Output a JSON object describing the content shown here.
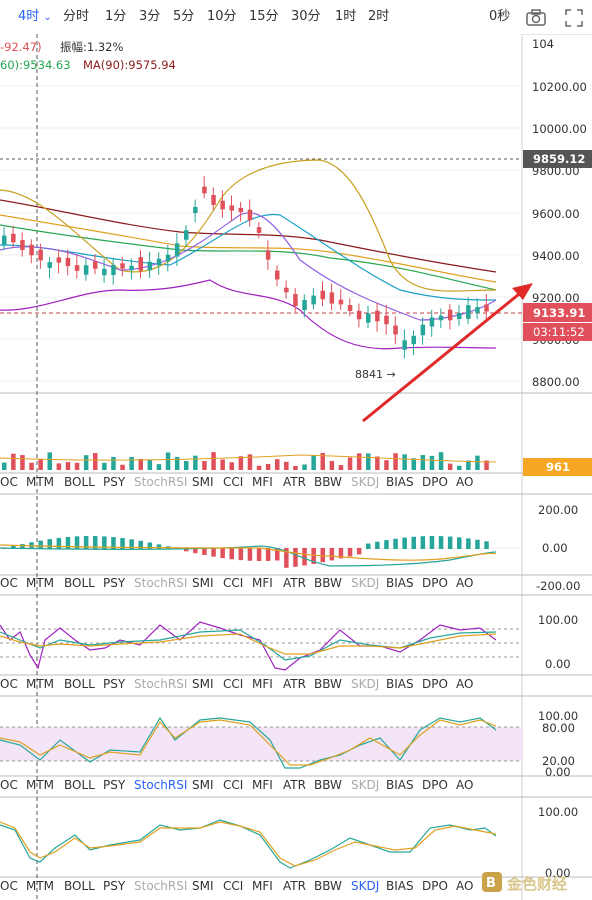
{
  "toolbar": {
    "timeframes": [
      "4时",
      "分时",
      "1分",
      "3分",
      "5分",
      "10分",
      "15分",
      "30分",
      "1时",
      "2时"
    ],
    "active_timeframe": "4时",
    "active_caret": "⌄",
    "countdown": "0秒",
    "icons": [
      "camera-icon",
      "fullscreen-icon"
    ]
  },
  "info": {
    "change": "-92.47)",
    "amplitude_label": "振幅:1.32%",
    "ma60": "60):9534.63",
    "ma90": "MA(90):9575.94"
  },
  "price_axis": {
    "ticks": [
      "104",
      "10200.00",
      "10000.00",
      "9800.00",
      "9600.00",
      "9400.00",
      "9200.00",
      "9000.00",
      "8800.00"
    ],
    "high_label": "9859.12",
    "last_price": "9133.91",
    "countdown_label": "03:11:52",
    "volume_label": "961",
    "low_annotation": "8841 →",
    "accent_red": "#e0505a",
    "accent_green": "#26a69a"
  },
  "indicator_tabs": {
    "items": [
      "OC",
      "MTM",
      "BOLL",
      "PSY",
      "StochRSI",
      "SMI",
      "CCI",
      "MFI",
      "ATR",
      "BBW",
      "SKDJ",
      "BIAS",
      "DPO",
      "AO"
    ],
    "greyed": [
      "StochRSI",
      "SKDJ"
    ],
    "highlighted_row4": "StochRSI",
    "highlighted_row5": "SKDJ"
  },
  "macd_axis": [
    "200.00",
    "0.00",
    "-200.00"
  ],
  "rsi_axis": [
    "100.00",
    "0.00"
  ],
  "stoch_axis": [
    "100.00",
    "80.00",
    "20.00",
    "0.00"
  ],
  "kdj_axis": [
    "100.00",
    "0.00"
  ],
  "watermark": "金色财经"
}
